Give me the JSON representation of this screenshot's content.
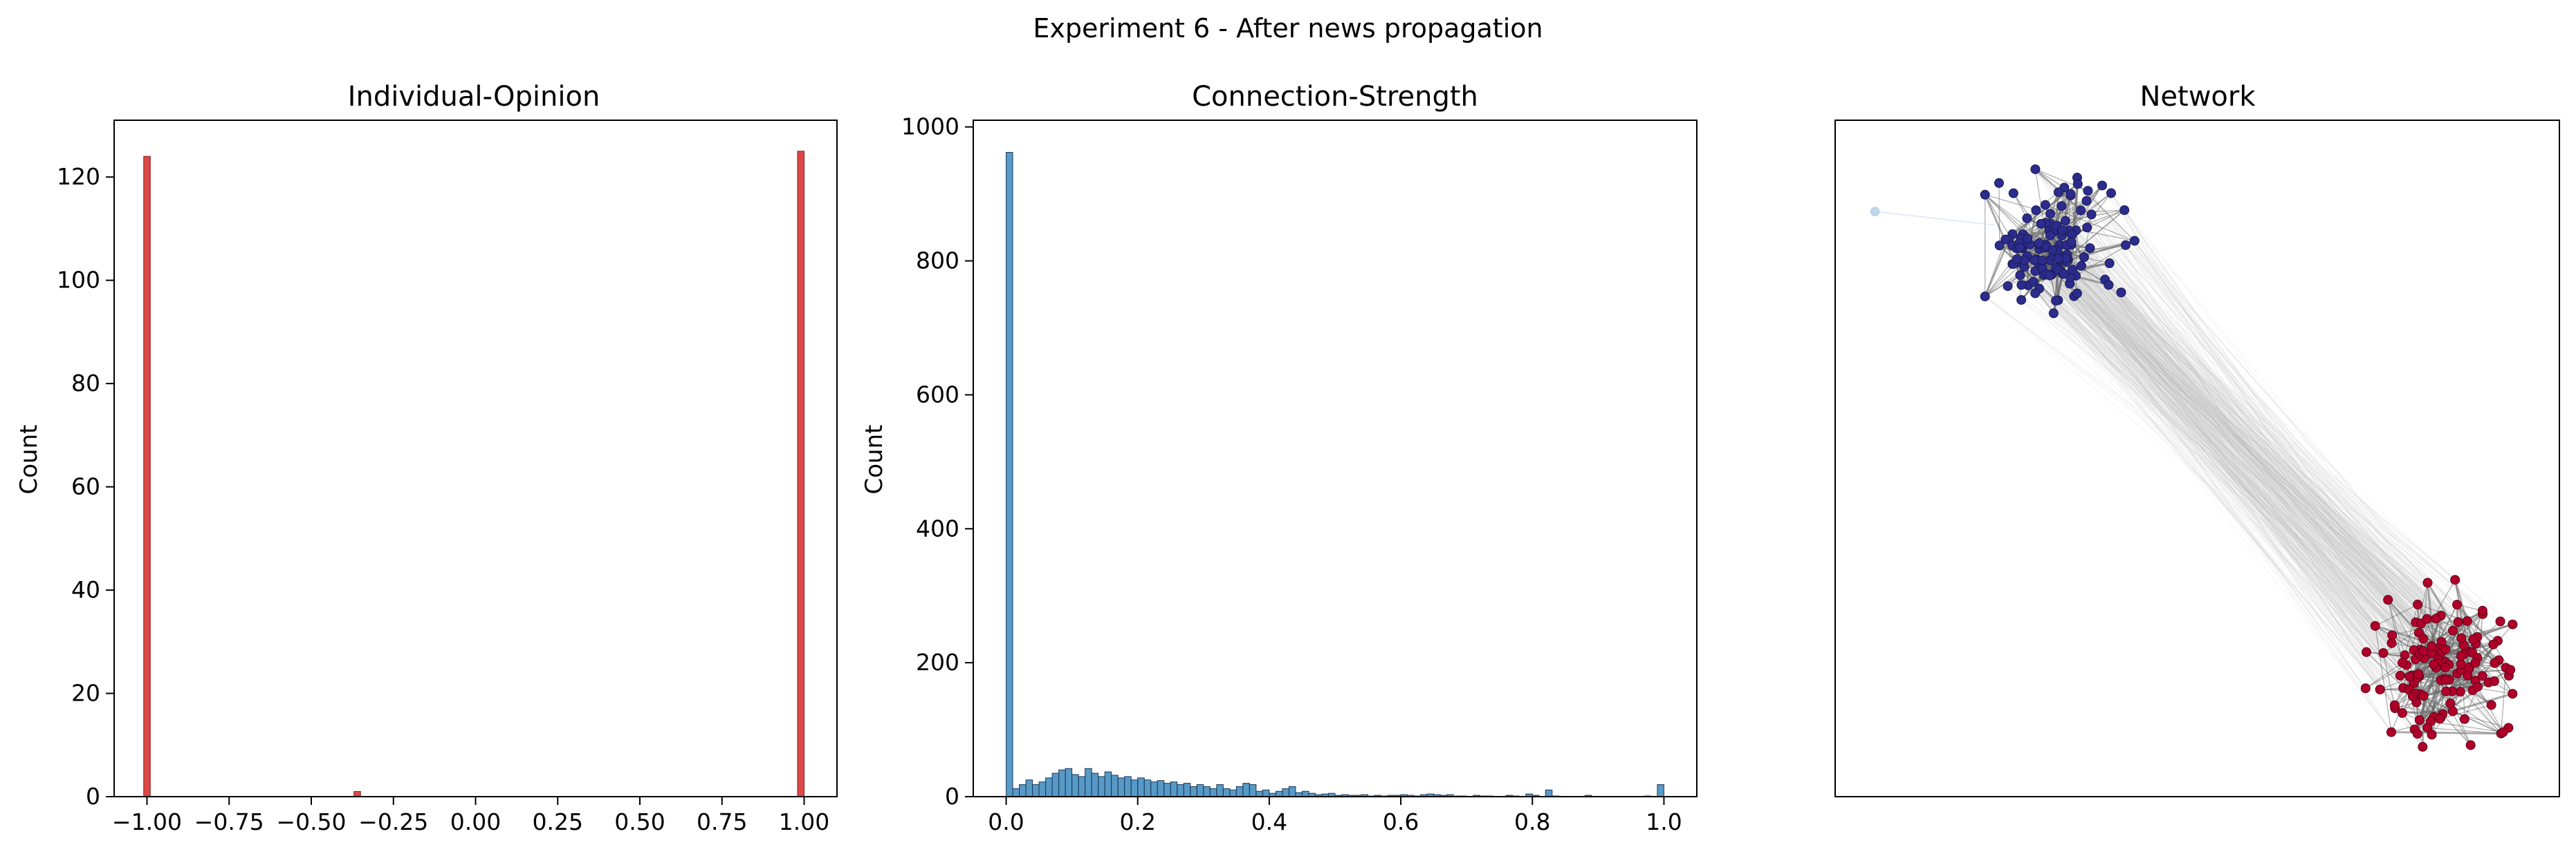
{
  "figure": {
    "suptitle": "Experiment 6 - After news propagation"
  },
  "chart_data": [
    {
      "type": "bar",
      "title": "Individual-Opinion",
      "xlabel": "",
      "ylabel": "Count",
      "xlim": [
        -1.1,
        1.1
      ],
      "ylim": [
        0,
        131
      ],
      "xticks": [
        -1.0,
        -0.75,
        -0.5,
        -0.25,
        0.0,
        0.25,
        0.5,
        0.75,
        1.0
      ],
      "xtick_labels": [
        "−1.00",
        "−0.75",
        "−0.50",
        "−0.25",
        "0.00",
        "0.25",
        "0.50",
        "0.75",
        "1.00"
      ],
      "yticks": [
        0,
        20,
        40,
        60,
        80,
        100,
        120
      ],
      "ytick_labels": [
        "0",
        "20",
        "40",
        "60",
        "80",
        "100",
        "120"
      ],
      "bin_width": 0.02,
      "color": "#d62728",
      "bars": [
        {
          "x": -1.0,
          "value": 124
        },
        {
          "x": -0.36,
          "value": 1
        },
        {
          "x": 0.99,
          "value": 125
        }
      ]
    },
    {
      "type": "bar",
      "title": "Connection-Strength",
      "xlabel": "",
      "ylabel": "Count",
      "xlim": [
        -0.05,
        1.05
      ],
      "ylim": [
        0,
        1010
      ],
      "xticks": [
        0.0,
        0.2,
        0.4,
        0.6,
        0.8,
        1.0
      ],
      "xtick_labels": [
        "0.0",
        "0.2",
        "0.4",
        "0.6",
        "0.8",
        "1.0"
      ],
      "yticks": [
        0,
        200,
        400,
        600,
        800,
        1000
      ],
      "ytick_labels": [
        "0",
        "200",
        "400",
        "600",
        "800",
        "1000"
      ],
      "bin_width": 0.01,
      "color": "#1f77b4",
      "bin_start": 0.0,
      "values": [
        962,
        12,
        18,
        25,
        18,
        22,
        28,
        35,
        40,
        42,
        33,
        30,
        42,
        35,
        30,
        37,
        32,
        28,
        30,
        25,
        28,
        25,
        22,
        24,
        20,
        22,
        18,
        20,
        15,
        18,
        15,
        12,
        18,
        12,
        10,
        15,
        20,
        18,
        8,
        10,
        5,
        8,
        12,
        15,
        6,
        8,
        5,
        3,
        4,
        5,
        2,
        3,
        2,
        2,
        3,
        1,
        2,
        1,
        2,
        2,
        3,
        2,
        1,
        3,
        4,
        3,
        2,
        3,
        1,
        1,
        0,
        2,
        1,
        1,
        0,
        0,
        2,
        1,
        0,
        4,
        2,
        0,
        10,
        1,
        0,
        0,
        0,
        0,
        2,
        0,
        0,
        0,
        0,
        0,
        0,
        0,
        0,
        1,
        0,
        18
      ]
    },
    {
      "type": "scatter",
      "title": "Network",
      "xlabel": "",
      "ylabel": "",
      "xlim": [
        0,
        1
      ],
      "ylim": [
        0,
        1
      ],
      "groups": [
        {
          "color": "#2b2c8c",
          "edge_color": "#1a1a55",
          "count": 125,
          "center": [
            0.295,
            0.81
          ],
          "radius": 0.085
        },
        {
          "color": "#b0002a",
          "edge_color": "#5a0015",
          "count": 125,
          "center": [
            0.845,
            0.195
          ],
          "radius": 0.09
        },
        {
          "color": "#bcd6ea",
          "edge_color": "#bcd6ea",
          "count": 1,
          "center": [
            0.055,
            0.865
          ],
          "radius": 0.0
        }
      ]
    }
  ]
}
